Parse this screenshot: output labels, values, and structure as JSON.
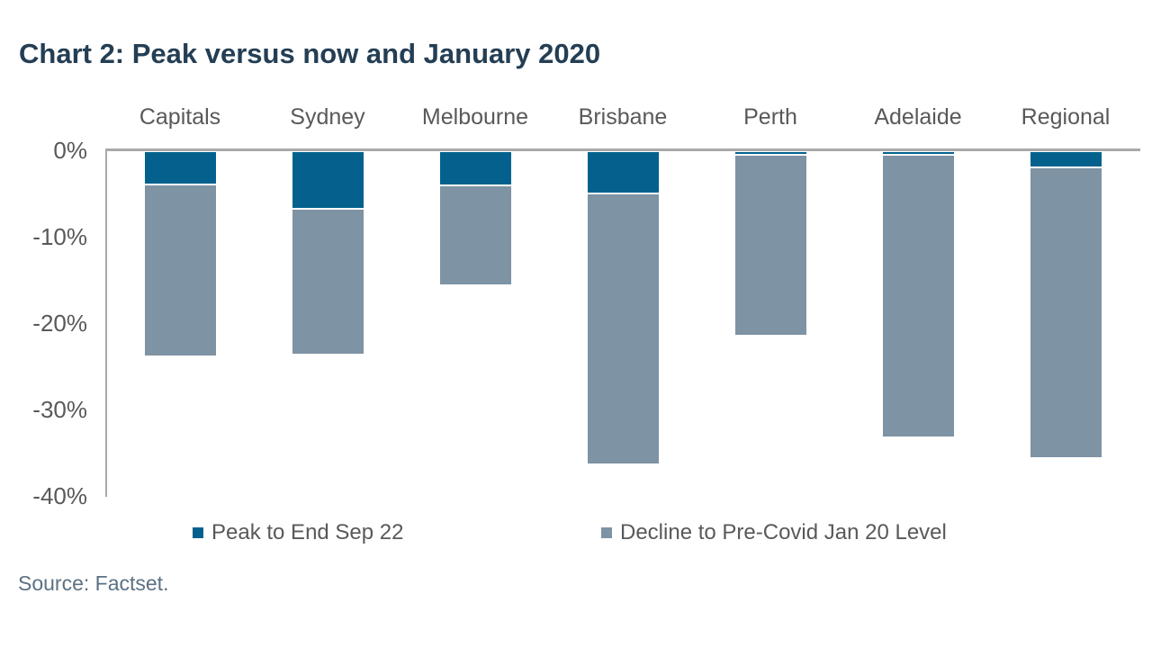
{
  "page": {
    "background": "#ffffff"
  },
  "title": {
    "text": "Chart 2: Peak versus now and January 2020",
    "color": "#243e54"
  },
  "source": {
    "text": "Source: Factset.",
    "color": "#5b7183"
  },
  "colors": {
    "peak_blue": "#04618d",
    "decline_gray": "#7e93a4",
    "axis_line": "#a9a9a9",
    "label_gray": "#595959"
  },
  "legend": {
    "items": [
      {
        "label": "Peak to End Sep 22",
        "color": "#04618d"
      },
      {
        "label": "Decline to Pre-Covid Jan 20 Level",
        "color": "#7e93a4"
      }
    ]
  },
  "chart_data": {
    "type": "bar",
    "stacked": true,
    "direction": "negative-down",
    "title": "Chart 2: Peak versus now and January 2020",
    "categories": [
      "Capitals",
      "Sydney",
      "Melbourne",
      "Brisbane",
      "Perth",
      "Adelaide",
      "Regional"
    ],
    "series": [
      {
        "name": "Peak to End Sep 22",
        "color": "#04618d",
        "values": [
          -3.9,
          -6.7,
          -4.0,
          -4.9,
          -0.4,
          -0.4,
          -1.9
        ]
      },
      {
        "name": "Decline to Pre-Covid Jan 20 Level",
        "color": "#7e93a4",
        "values": [
          -19.8,
          -16.8,
          -11.5,
          -31.4,
          -21.0,
          -32.7,
          -33.6
        ]
      }
    ],
    "stacked_totals": [
      -23.7,
      -23.5,
      -15.5,
      -36.3,
      -21.4,
      -33.1,
      -35.5
    ],
    "xlabel": "",
    "ylabel": "",
    "y_ticks": [
      {
        "label": "0%",
        "value": 0
      },
      {
        "label": "-10%",
        "value": -10
      },
      {
        "label": "-20%",
        "value": -20
      },
      {
        "label": "-30%",
        "value": -30
      },
      {
        "label": "-40%",
        "value": -40
      }
    ],
    "ylim": [
      -40,
      0
    ],
    "grid": false,
    "category_label_position": "top",
    "legend_position": "bottom"
  }
}
